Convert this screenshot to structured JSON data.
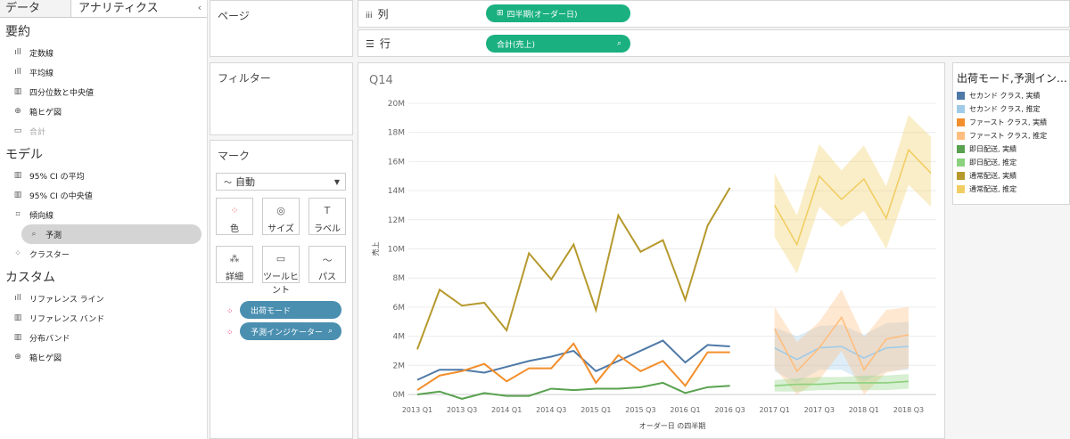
{
  "sidebar": {
    "tab_data": "データ",
    "tab_analytics": "アナリティクス",
    "collapse_icon": "‹",
    "sections": [
      {
        "title": "要約",
        "items": [
          {
            "icon": "ıll",
            "label": "定数線"
          },
          {
            "icon": "ıll",
            "label": "平均線"
          },
          {
            "icon": "▥",
            "label": "四分位数と中央値"
          },
          {
            "icon": "⊕",
            "label": "箱ヒゲ図"
          },
          {
            "icon": "▭",
            "label": "合計"
          }
        ]
      },
      {
        "title": "モデル",
        "items": [
          {
            "icon": "▥",
            "label": "95% CI の平均"
          },
          {
            "icon": "▥",
            "label": "95% CI の中央値"
          },
          {
            "icon": "⌗",
            "label": "傾向線"
          },
          {
            "icon": "⌕",
            "label": "予測"
          },
          {
            "icon": "⁘",
            "label": "クラスター"
          }
        ]
      },
      {
        "title": "カスタム",
        "items": [
          {
            "icon": "ıll",
            "label": "リファレンス ライン"
          },
          {
            "icon": "▥",
            "label": "リファレンス バンド"
          },
          {
            "icon": "▥",
            "label": "分布バンド"
          },
          {
            "icon": "⊕",
            "label": "箱ヒゲ図"
          }
        ]
      }
    ]
  },
  "pages": {
    "title": "ページ"
  },
  "filters": {
    "title": "フィルター"
  },
  "columns": {
    "icon": "iii",
    "label": "列",
    "pill": "四半期(オーダー日)",
    "pill_icon": "⊞"
  },
  "rows": {
    "icon": "☰",
    "label": "行",
    "pill": "合計(売上)",
    "pill_icon": "⌕"
  },
  "marks": {
    "title": "マーク",
    "type": "自動",
    "type_icon": "〜",
    "buttons": [
      {
        "icon": "⁘",
        "label": "色"
      },
      {
        "icon": "◎",
        "label": "サイズ"
      },
      {
        "icon": "T",
        "label": "ラベル"
      },
      {
        "icon": "⁂",
        "label": "詳細"
      },
      {
        "icon": "▭",
        "label": "ツールヒント"
      },
      {
        "icon": "〜",
        "label": "パス"
      }
    ],
    "pills": [
      {
        "label": "出荷モード",
        "end": ""
      },
      {
        "label": "予測インジケーター",
        "end": "⌕"
      }
    ]
  },
  "chart_data": {
    "type": "line",
    "title": "Q14",
    "xlabel": "オーダー日 の四半期",
    "ylabel": "売上",
    "ylim": [
      0,
      20000000
    ],
    "yticks": [
      "0M",
      "2M",
      "4M",
      "6M",
      "8M",
      "10M",
      "12M",
      "14M",
      "16M",
      "18M",
      "20M"
    ],
    "xtick_labels": [
      "2013 Q1",
      "2013 Q3",
      "2014 Q1",
      "2014 Q3",
      "2015 Q1",
      "2015 Q3",
      "2016 Q1",
      "2016 Q3",
      "2017 Q1",
      "2017 Q3",
      "2018 Q1",
      "2018 Q3"
    ],
    "x_actual": [
      "2013 Q1",
      "2013 Q2",
      "2013 Q3",
      "2013 Q4",
      "2014 Q1",
      "2014 Q2",
      "2014 Q3",
      "2014 Q4",
      "2015 Q1",
      "2015 Q2",
      "2015 Q3",
      "2015 Q4",
      "2016 Q1",
      "2016 Q2",
      "2016 Q3",
      "2016 Q4"
    ],
    "x_forecast": [
      "2017 Q1",
      "2017 Q2",
      "2017 Q3",
      "2017 Q4",
      "2018 Q1",
      "2018 Q2",
      "2018 Q3",
      "2018 Q4"
    ],
    "series": [
      {
        "name": "セカンド クラス, 実績",
        "color": "#4e79a7",
        "kind": "actual",
        "values": [
          1.0,
          1.7,
          1.7,
          1.5,
          1.9,
          2.3,
          2.6,
          3.0,
          1.6,
          2.3,
          3.0,
          3.7,
          2.2,
          3.4,
          3.3,
          null
        ]
      },
      {
        "name": "ファースト クラス, 実績",
        "color": "#f28e2b",
        "kind": "actual",
        "values": [
          0.3,
          1.3,
          1.6,
          2.1,
          0.9,
          1.8,
          1.8,
          3.5,
          0.8,
          2.7,
          1.6,
          2.3,
          0.6,
          2.9,
          2.9,
          null
        ]
      },
      {
        "name": "即日配送, 実績",
        "color": "#59a14f",
        "kind": "actual",
        "values": [
          0.0,
          0.2,
          -0.3,
          0.1,
          -0.1,
          -0.1,
          0.4,
          0.3,
          0.4,
          0.4,
          0.5,
          0.8,
          0.1,
          0.5,
          0.6,
          null
        ]
      },
      {
        "name": "通常配送, 実績",
        "color": "#b6992d",
        "kind": "actual",
        "values": [
          3.1,
          7.2,
          6.1,
          6.3,
          4.4,
          9.7,
          7.9,
          10.3,
          5.8,
          12.3,
          9.8,
          10.6,
          6.5,
          11.6,
          14.2,
          null
        ]
      },
      {
        "name": "セカンド クラス, 推定",
        "color": "#a0cbe8",
        "kind": "forecast",
        "values": [
          3.2,
          2.4,
          3.2,
          3.3,
          2.5,
          3.2,
          3.3,
          null
        ],
        "lower": [
          1.6,
          0.8,
          1.7,
          1.7,
          0.9,
          1.6,
          1.7,
          null
        ],
        "upper": [
          4.6,
          4.0,
          4.7,
          4.8,
          4.1,
          4.9,
          5.0,
          null
        ]
      },
      {
        "name": "ファースト クラス, 推定",
        "color": "#ffbe7d",
        "kind": "forecast",
        "values": [
          4.5,
          1.6,
          3.2,
          5.3,
          1.7,
          3.8,
          4.1,
          null
        ],
        "lower": [
          1.8,
          0.0,
          1.0,
          3.0,
          0.0,
          1.5,
          1.8,
          null
        ],
        "upper": [
          6.0,
          3.6,
          5.0,
          7.2,
          3.9,
          5.8,
          6.0,
          null
        ]
      },
      {
        "name": "即日配送, 推定",
        "color": "#8cd17d",
        "kind": "forecast",
        "values": [
          0.6,
          0.7,
          0.7,
          0.8,
          0.8,
          0.8,
          0.9,
          null
        ],
        "lower": [
          0.2,
          0.2,
          0.3,
          0.3,
          0.3,
          0.3,
          0.4,
          null
        ],
        "upper": [
          1.0,
          1.1,
          1.2,
          1.2,
          1.3,
          1.3,
          1.4,
          null
        ]
      },
      {
        "name": "通常配送, 推定",
        "color": "#f1ce63",
        "kind": "forecast",
        "values": [
          13.0,
          10.3,
          15.0,
          13.4,
          14.8,
          12.1,
          16.8,
          15.2
        ],
        "lower": [
          10.8,
          8.3,
          12.9,
          11.5,
          12.6,
          10.0,
          14.4,
          12.9
        ],
        "upper": [
          15.2,
          12.3,
          17.2,
          15.4,
          17.1,
          14.3,
          19.2,
          17.7
        ]
      }
    ],
    "grid": true,
    "legend": "right"
  },
  "legend": {
    "title": "出荷モード,予測イン…",
    "items": [
      {
        "label": "セカンド クラス, 実績",
        "color": "#4e79a7"
      },
      {
        "label": "セカンド クラス, 推定",
        "color": "#a0cbe8"
      },
      {
        "label": "ファースト クラス, 実績",
        "color": "#f28e2b"
      },
      {
        "label": "ファースト クラス, 推定",
        "color": "#ffbe7d"
      },
      {
        "label": "即日配送, 実績",
        "color": "#59a14f"
      },
      {
        "label": "即日配送, 推定",
        "color": "#8cd17d"
      },
      {
        "label": "通常配送, 実績",
        "color": "#b6992d"
      },
      {
        "label": "通常配送, 推定",
        "color": "#f1ce63"
      }
    ]
  }
}
